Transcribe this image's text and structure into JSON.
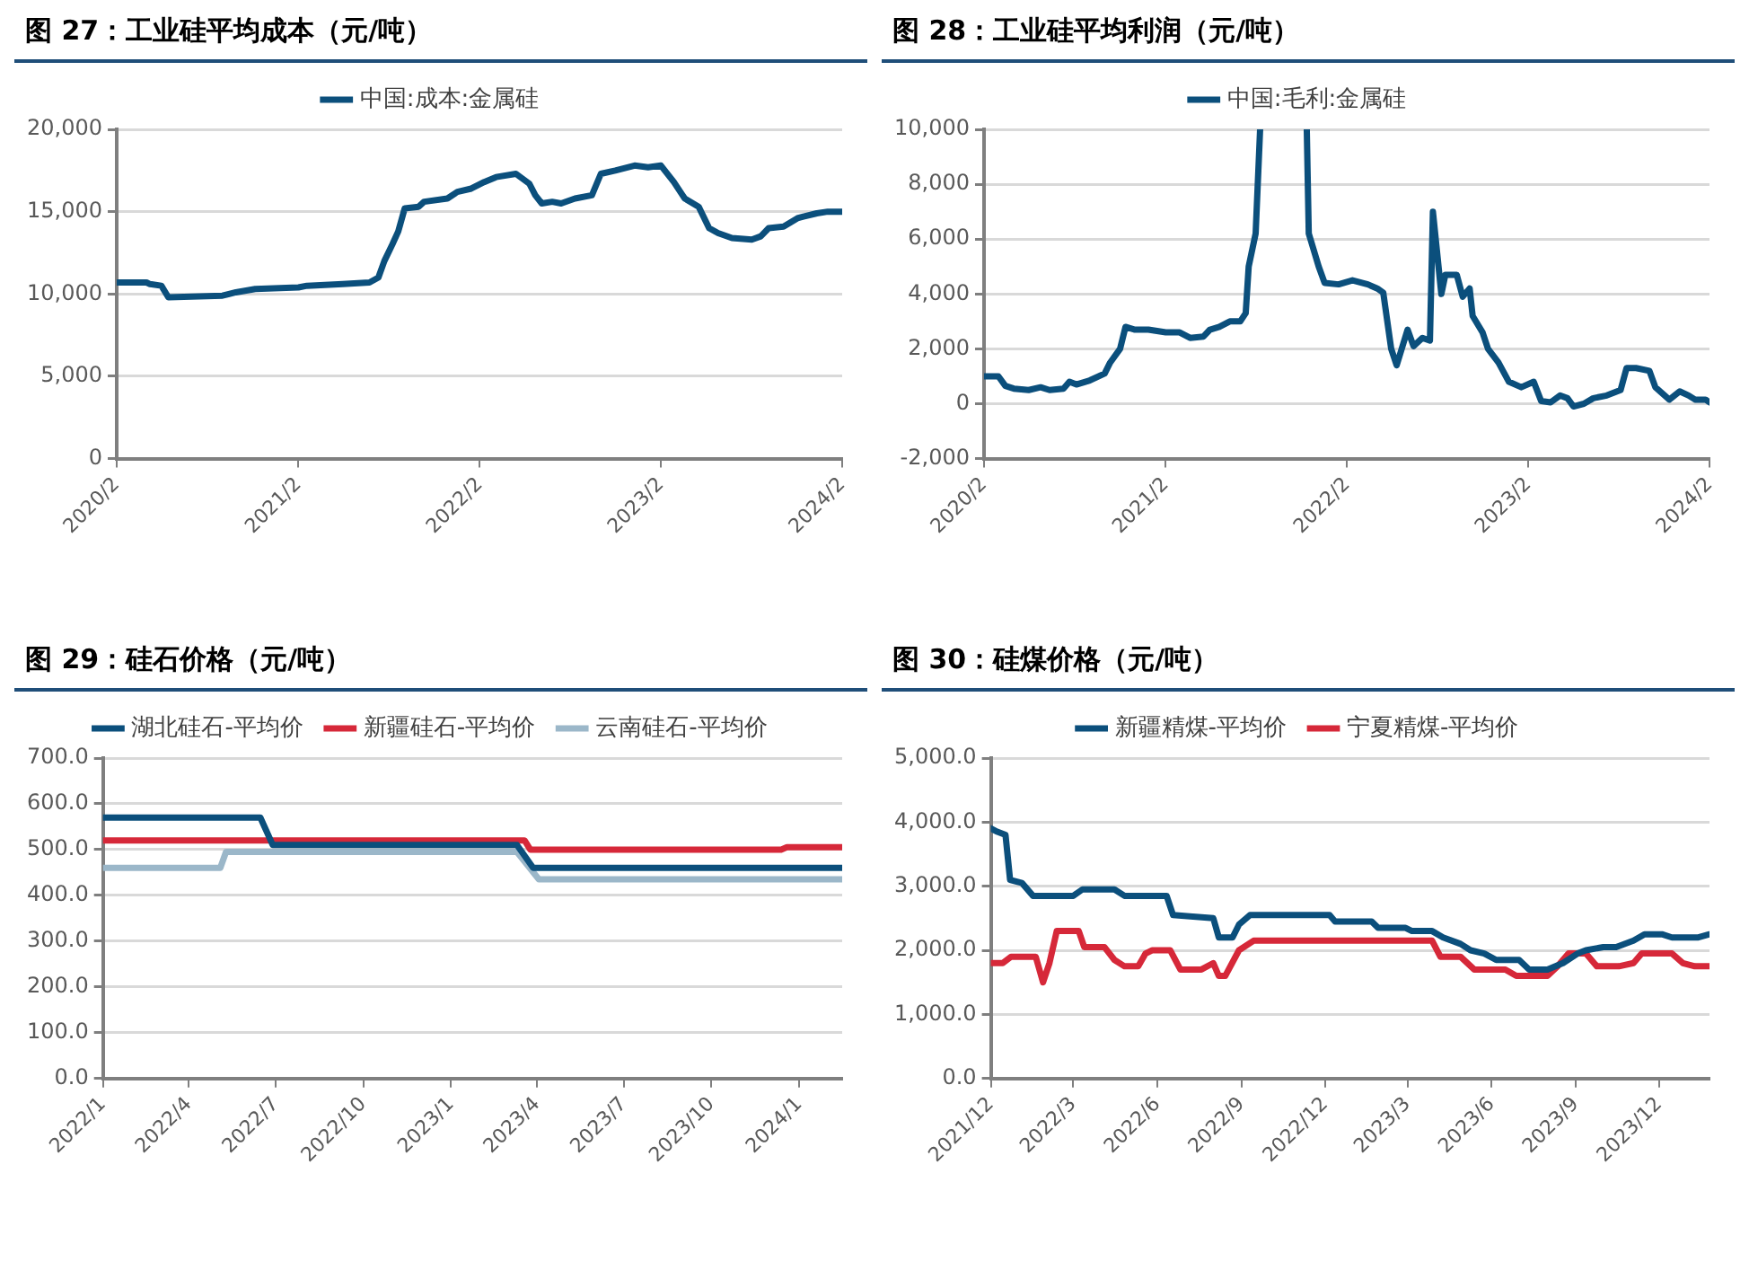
{
  "chart_data": [
    {
      "type": "line",
      "title": "图 27：工业硅平均成本（元/吨）",
      "legend": "top",
      "grid": "y",
      "xlim": [
        "2020-02",
        "2024-02"
      ],
      "xticks": [
        {
          "value": "2020-02",
          "label": "2020/2"
        },
        {
          "value": "2021-02",
          "label": "2021/2"
        },
        {
          "value": "2022-02",
          "label": "2022/2"
        },
        {
          "value": "2023-02",
          "label": "2023/2"
        },
        {
          "value": "2024-02",
          "label": "2024/2"
        }
      ],
      "ylim": [
        0,
        20000
      ],
      "yticks": [
        0,
        {
          "value": 5000,
          "label": "5,000"
        },
        {
          "value": 10000,
          "label": "10,000"
        },
        {
          "value": 15000,
          "label": "15,000"
        },
        {
          "value": 20000,
          "label": "20,000"
        }
      ],
      "x": [
        "2020-02",
        "2020-04",
        "2020-04-08",
        "2020-05",
        "2020-05-15",
        "2020-09",
        "2020-09-28",
        "2020-11-06",
        "2021-02",
        "2021-02-18",
        "2021-05",
        "2021-06-24",
        "2021-07-12",
        "2021-07-24",
        "2021-08-09",
        "2021-08-21",
        "2021-09-03",
        "2021-10",
        "2021-10-12",
        "2021-11-28",
        "2021-12-18",
        "2022-01-15",
        "2022-02-10",
        "2022-03-06",
        "2022-04-15",
        "2022-05-12",
        "2022-05-24",
        "2022-06-06",
        "2022-06-27",
        "2022-07-15",
        "2022-08-12",
        "2022-09-15",
        "2022-10-03",
        "2022-11",
        "2022-12-10",
        "2023-01-06",
        "2023-02",
        "2023-02-27",
        "2023-03-21",
        "2023-04-18",
        "2023-05-09",
        "2023-05-27",
        "2023-06-24",
        "2023-08-03",
        "2023-08-21",
        "2023-09-06",
        "2023-10-06",
        "2023-11-03",
        "2023-11-15",
        "2023-12-12",
        "2024-01-03",
        "2024-02"
      ],
      "series": [
        {
          "name": "中国:成本:金属硅",
          "color": "#0b4f7c",
          "values": [
            10700,
            10700,
            10600,
            10500,
            9800,
            9900,
            10100,
            10300,
            10400,
            10500,
            10600,
            10700,
            11000,
            12000,
            13000,
            13800,
            15200,
            15300,
            15600,
            15800,
            16200,
            16400,
            16800,
            17100,
            17300,
            16700,
            16000,
            15500,
            15600,
            15500,
            15800,
            16000,
            17300,
            17500,
            17800,
            17700,
            17800,
            16800,
            15800,
            15300,
            14000,
            13700,
            13400,
            13300,
            13500,
            14000,
            14100,
            14600,
            14700,
            14900,
            15000,
            15000
          ]
        }
      ]
    },
    {
      "type": "line",
      "title": "图 28：工业硅平均利润（元/吨）",
      "legend": "top",
      "grid": "y",
      "xlim": [
        "2020-02",
        "2024-02"
      ],
      "xticks": [
        {
          "value": "2020-02",
          "label": "2020/2"
        },
        {
          "value": "2021-02",
          "label": "2021/2"
        },
        {
          "value": "2022-02",
          "label": "2022/2"
        },
        {
          "value": "2023-02",
          "label": "2023/2"
        },
        {
          "value": "2024-02",
          "label": "2024/2"
        }
      ],
      "ylim": [
        -2000,
        10000
      ],
      "yticks": [
        {
          "value": -2000,
          "label": "-2,000"
        },
        0,
        {
          "value": 2000,
          "label": "2,000"
        },
        {
          "value": 4000,
          "label": "4,000"
        },
        {
          "value": 6000,
          "label": "6,000"
        },
        {
          "value": 8000,
          "label": "8,000"
        },
        {
          "value": 10000,
          "label": "10,000"
        }
      ],
      "x": [
        "2020-02",
        "2020-03",
        "2020-03-15",
        "2020-04",
        "2020-05",
        "2020-05-25",
        "2020-06-12",
        "2020-07-10",
        "2020-07-22",
        "2020-08-05",
        "2020-09",
        "2020-10",
        "2020-10-12",
        "2020-11",
        "2020-11-12",
        "2020-12",
        "2020-12-28",
        "2021-02",
        "2021-03",
        "2021-03-22",
        "2021-04-18",
        "2021-05",
        "2021-05-20",
        "2021-06-10",
        "2021-07",
        "2021-07-12",
        "2021-07-18",
        "2021-08",
        "2021-08-10",
        "2021-09-25",
        "2021-11-12",
        "2021-11-16",
        "2021-12-06",
        "2021-12-18",
        "2022-01-15",
        "2022-02-12",
        "2022-03-15",
        "2022-04-03",
        "2022-04-15",
        "2022-05",
        "2022-05-12",
        "2022-06-03",
        "2022-06-15",
        "2022-07-03",
        "2022-07-18",
        "2022-07-24",
        "2022-08-10",
        "2022-08-18",
        "2022-09-10",
        "2022-09-22",
        "2022-10-06",
        "2022-10-12",
        "2022-11",
        "2022-11-12",
        "2022-12-03",
        "2022-12-24",
        "2023-01-18",
        "2023-02-12",
        "2023-02-27",
        "2023-03-18",
        "2023-04-06",
        "2023-04-21",
        "2023-05-03",
        "2023-05-24",
        "2023-06-12",
        "2023-07-09",
        "2023-08-06",
        "2023-08-18",
        "2023-09-06",
        "2023-10-03",
        "2023-10-15",
        "2023-11-12",
        "2023-12-03",
        "2023-12-21",
        "2024-01-03",
        "2024-01-24",
        "2024-02"
      ],
      "series": [
        {
          "name": "中国:毛利:金属硅",
          "color": "#0b4f7c",
          "values": [
            1000,
            1000,
            650,
            550,
            500,
            600,
            500,
            550,
            800,
            700,
            850,
            1100,
            1500,
            2000,
            2800,
            2700,
            2700,
            2600,
            2600,
            2400,
            2450,
            2700,
            2800,
            3000,
            3000,
            3300,
            5000,
            6200,
            10000,
            null,
            10000,
            6200,
            5000,
            4400,
            4350,
            4500,
            4350,
            4200,
            4050,
            2000,
            1400,
            2700,
            2100,
            2400,
            2300,
            7000,
            4000,
            4700,
            4700,
            3900,
            4200,
            3200,
            2600,
            2000,
            1500,
            800,
            600,
            800,
            100,
            50,
            300,
            200,
            -100,
            0,
            200,
            300,
            500,
            1300,
            1300,
            1200,
            600,
            150,
            450,
            300,
            150,
            150,
            50
          ]
        }
      ]
    },
    {
      "type": "line",
      "title": "图 29：硅石价格（元/吨）",
      "legend": "top",
      "grid": "y",
      "xlim": [
        "2022-01",
        "2024-02-15"
      ],
      "xticks": [
        {
          "value": "2022-01",
          "label": "2022/1"
        },
        {
          "value": "2022-04",
          "label": "2022/4"
        },
        {
          "value": "2022-07",
          "label": "2022/7"
        },
        {
          "value": "2022-10",
          "label": "2022/10"
        },
        {
          "value": "2023-01",
          "label": "2023/1"
        },
        {
          "value": "2023-04",
          "label": "2023/4"
        },
        {
          "value": "2023-07",
          "label": "2023/7"
        },
        {
          "value": "2023-10",
          "label": "2023/10"
        },
        {
          "value": "2024-01",
          "label": "2024/1"
        }
      ],
      "ylim": [
        0,
        700
      ],
      "yticks": [
        {
          "value": 0,
          "label": "0.0"
        },
        {
          "value": 100,
          "label": "100.0"
        },
        {
          "value": 200,
          "label": "200.0"
        },
        {
          "value": 300,
          "label": "300.0"
        },
        {
          "value": 400,
          "label": "400.0"
        },
        {
          "value": 500,
          "label": "500.0"
        },
        {
          "value": 600,
          "label": "600.0"
        },
        {
          "value": 700,
          "label": "700.0"
        }
      ],
      "series": [
        {
          "name": "湖北硅石-平均价",
          "color": "#0b4f7c",
          "x": [
            "2022-01",
            "2022-06-15",
            "2022-06-28",
            "2023-03-11",
            "2023-03-28",
            "2024-02-15"
          ],
          "values": [
            570,
            570,
            510,
            510,
            460,
            460
          ]
        },
        {
          "name": "新疆硅石-平均价",
          "color": "#d62839",
          "x": [
            "2022-01",
            "2023-03-19",
            "2023-03-25",
            "2023-12-13",
            "2023-12-19",
            "2024-02-15"
          ],
          "values": [
            520,
            520,
            500,
            500,
            505,
            505
          ]
        },
        {
          "name": "云南硅石-平均价",
          "color": "#9bb7c9",
          "x": [
            "2022-01",
            "2022-05-04",
            "2022-05-10",
            "2023-03-11",
            "2023-04-03",
            "2024-02-15"
          ],
          "values": [
            460,
            460,
            495,
            495,
            435,
            435
          ]
        }
      ]
    },
    {
      "type": "line",
      "title": "图 30：硅煤价格（元/吨）",
      "legend": "top",
      "grid": "y",
      "xlim": [
        "2021-12",
        "2024-01-25"
      ],
      "xticks": [
        {
          "value": "2021-12",
          "label": "2021/12"
        },
        {
          "value": "2022-03",
          "label": "2022/3"
        },
        {
          "value": "2022-06",
          "label": "2022/6"
        },
        {
          "value": "2022-09",
          "label": "2022/9"
        },
        {
          "value": "2022-12",
          "label": "2022/12"
        },
        {
          "value": "2023-03",
          "label": "2023/3"
        },
        {
          "value": "2023-06",
          "label": "2023/6"
        },
        {
          "value": "2023-09",
          "label": "2023/9"
        },
        {
          "value": "2023-12",
          "label": "2023/12"
        }
      ],
      "ylim": [
        0,
        5000
      ],
      "yticks": [
        {
          "value": 0,
          "label": "0.0"
        },
        {
          "value": 1000,
          "label": "1,000.0"
        },
        {
          "value": 2000,
          "label": "2,000.0"
        },
        {
          "value": 3000,
          "label": "3,000.0"
        },
        {
          "value": 4000,
          "label": "4,000.0"
        },
        {
          "value": 5000,
          "label": "5,000.0"
        }
      ],
      "series": [
        {
          "name": "新疆精煤-平均价",
          "color": "#0b4f7c",
          "x": [
            "2021-12",
            "2021-12-08",
            "2021-12-17",
            "2021-12-22",
            "2022-01-04",
            "2022-01-16",
            "2022-01-27",
            "2022-03",
            "2022-03-11",
            "2022-04-15",
            "2022-04-26",
            "2022-06-11",
            "2022-06-18",
            "2022-08",
            "2022-08-07",
            "2022-08-22",
            "2022-08-29",
            "2022-09-10",
            "2022-12-06",
            "2022-12-12",
            "2023-01-21",
            "2023-01-28",
            "2023-02-27",
            "2023-03-06",
            "2023-03-28",
            "2023-04-09",
            "2023-04-28",
            "2023-05-09",
            "2023-05-24",
            "2023-06-06",
            "2023-07",
            "2023-07-12",
            "2023-08",
            "2023-08-18",
            "2023-09-03",
            "2023-09-12",
            "2023-10",
            "2023-10-15",
            "2023-11-03",
            "2023-11-15",
            "2023-12-04",
            "2023-12-15",
            "2024-01-12",
            "2024-01-25"
          ],
          "values": [
            3900,
            3850,
            3800,
            3100,
            3050,
            2850,
            2850,
            2850,
            2950,
            2950,
            2850,
            2850,
            2550,
            2500,
            2200,
            2200,
            2400,
            2550,
            2550,
            2450,
            2450,
            2350,
            2350,
            2300,
            2300,
            2200,
            2100,
            2000,
            1950,
            1850,
            1850,
            1700,
            1700,
            1800,
            1950,
            2000,
            2050,
            2050,
            2150,
            2250,
            2250,
            2200,
            2200,
            2250
          ]
        },
        {
          "name": "宁夏精煤-平均价",
          "color": "#d62839",
          "x": [
            "2021-12",
            "2021-12-14",
            "2021-12-23",
            "2022-01-19",
            "2022-01-27",
            "2022-02-03",
            "2022-02-11",
            "2022-03-07",
            "2022-03-13",
            "2022-04-04",
            "2022-04-15",
            "2022-04-26",
            "2022-05-11",
            "2022-05-19",
            "2022-05-26",
            "2022-06-15",
            "2022-06-26",
            "2022-07-19",
            "2022-08",
            "2022-08-07",
            "2022-08-14",
            "2022-08-29",
            "2022-09-14",
            "2023-03-28",
            "2023-04-06",
            "2023-04-28",
            "2023-05-13",
            "2023-06-16",
            "2023-06-28",
            "2023-08",
            "2023-08-12",
            "2023-08-24",
            "2023-09-12",
            "2023-09-24",
            "2023-10-18",
            "2023-11-03",
            "2023-11-12",
            "2023-12-15",
            "2023-12-27",
            "2024-01-09",
            "2024-01-25"
          ],
          "values": [
            1800,
            1800,
            1900,
            1900,
            1500,
            1800,
            2300,
            2300,
            2050,
            2050,
            1850,
            1750,
            1750,
            1950,
            2000,
            2000,
            1700,
            1700,
            1800,
            1600,
            1600,
            2000,
            2150,
            2150,
            1900,
            1900,
            1700,
            1700,
            1600,
            1600,
            1750,
            1950,
            1950,
            1750,
            1750,
            1800,
            1950,
            1950,
            1800,
            1750,
            1750
          ]
        }
      ]
    }
  ]
}
